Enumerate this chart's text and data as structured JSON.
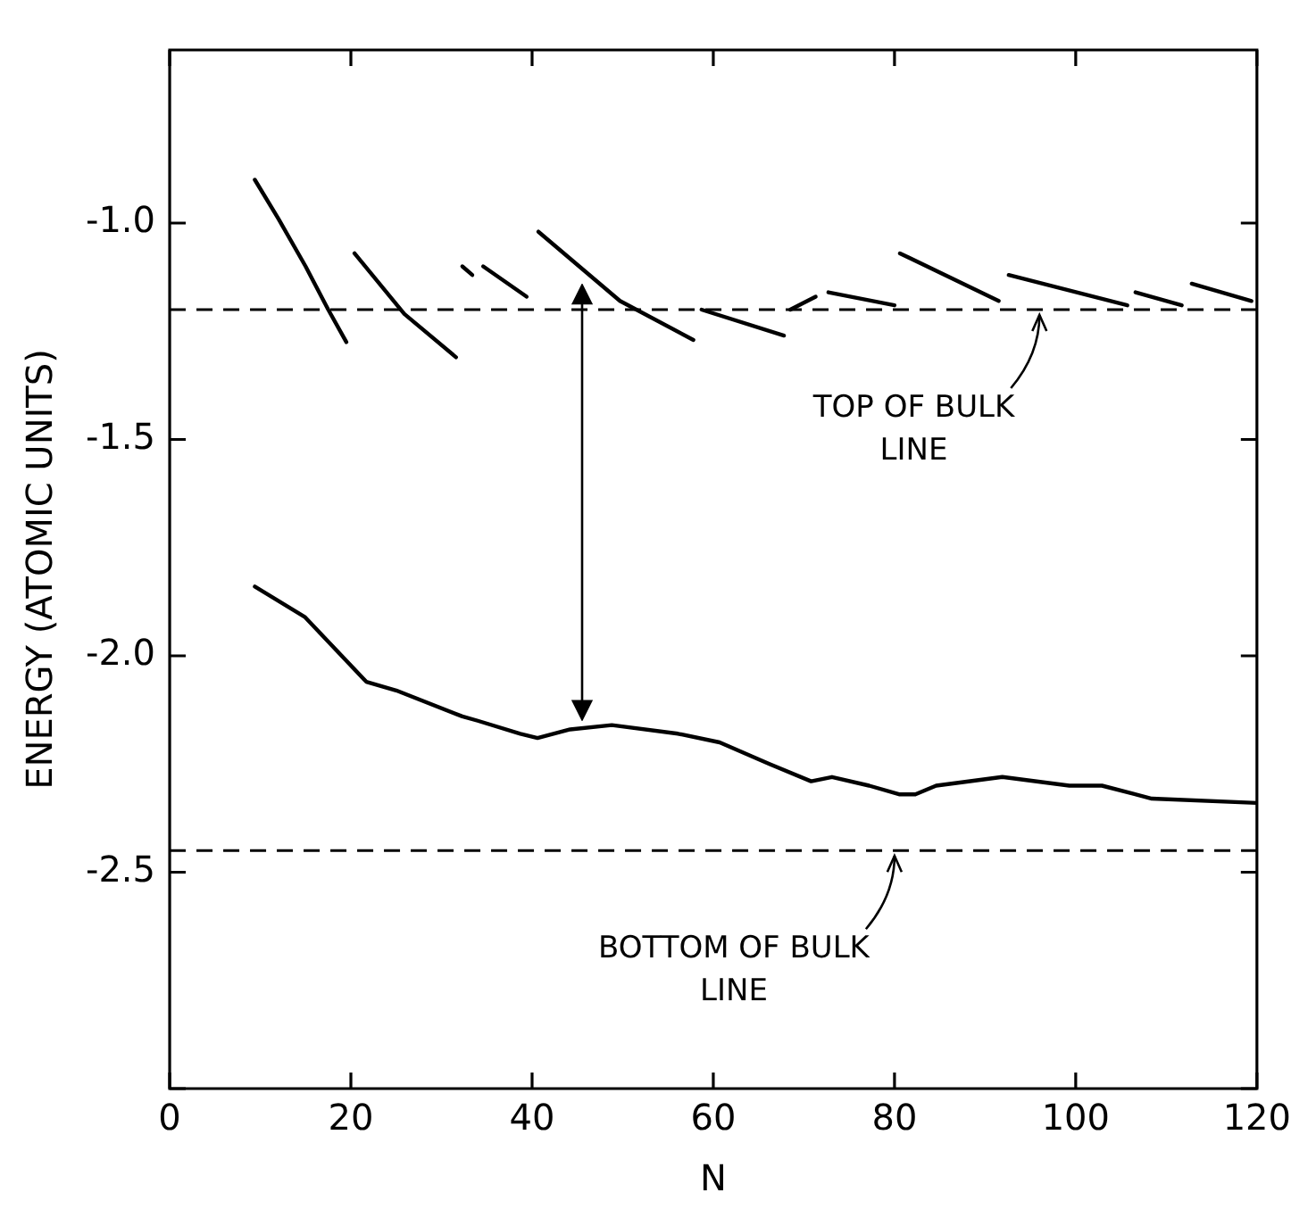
{
  "chart_data": {
    "type": "line",
    "xlabel": "N",
    "ylabel": "ENERGY (ATOMIC UNITS)",
    "xlim": [
      0,
      120
    ],
    "xticks": [
      0,
      20,
      40,
      60,
      80,
      100,
      120
    ],
    "ylim": [
      -3.0,
      -0.6
    ],
    "yticks": [
      {
        "value": -3.0,
        "label": null
      },
      -2.5,
      {
        "value": -2,
        "label": "-2.0"
      },
      -1.5,
      {
        "value": -1,
        "label": "-1.0"
      }
    ],
    "grid": false,
    "legend": false,
    "marker": "none",
    "line_style": "solid",
    "series": [
      {
        "color": "#000000",
        "x": [
          9.4,
          12,
          15,
          17.5,
          19.5
        ],
        "values": [
          -0.9,
          -0.99,
          -1.1,
          -1.2,
          -1.275
        ]
      },
      {
        "color": "#000000",
        "x": [
          20.4,
          25.9,
          31.6
        ],
        "values": [
          -1.07,
          -1.21,
          -1.31
        ]
      },
      {
        "color": "#000000",
        "x": [
          32.3,
          33.4
        ],
        "values": [
          -1.1,
          -1.12
        ]
      },
      {
        "color": "#000000",
        "x": [
          34.6,
          39.4
        ],
        "values": [
          -1.1,
          -1.17
        ]
      },
      {
        "color": "#000000",
        "x": [
          40.7,
          49.7,
          57.8
        ],
        "values": [
          -1.02,
          -1.18,
          -1.27
        ]
      },
      {
        "color": "#000000",
        "x": [
          58.7,
          67.8
        ],
        "values": [
          -1.2,
          -1.26
        ]
      },
      {
        "color": "#000000",
        "x": [
          68.5,
          71.3
        ],
        "values": [
          -1.2,
          -1.17
        ]
      },
      {
        "color": "#000000",
        "x": [
          72.7,
          80
        ],
        "values": [
          -1.16,
          -1.19
        ]
      },
      {
        "color": "#000000",
        "x": [
          80.6,
          91.5
        ],
        "values": [
          -1.07,
          -1.18
        ]
      },
      {
        "color": "#000000",
        "x": [
          92.6,
          105.7
        ],
        "values": [
          -1.12,
          -1.19
        ]
      },
      {
        "color": "#000000",
        "x": [
          106.6,
          111.7
        ],
        "values": [
          -1.16,
          -1.19
        ]
      },
      {
        "color": "#000000",
        "x": [
          112.8,
          119.4
        ],
        "values": [
          -1.14,
          -1.18
        ]
      },
      {
        "color": "#000000",
        "x": [
          9.4,
          14.9,
          21.7,
          25,
          32.3,
          34,
          38.7,
          40.6,
          44.2,
          48.8,
          56.1,
          60.7,
          66.2,
          70.8,
          73.1,
          77.2,
          80.5,
          82.3,
          84.6,
          91.9,
          99.3,
          102.9,
          108.4,
          120
        ],
        "values": [
          -1.84,
          -1.91,
          -2.06,
          -2.08,
          -2.14,
          -2.15,
          -2.18,
          -2.19,
          -2.17,
          -2.16,
          -2.18,
          -2.2,
          -2.25,
          -2.29,
          -2.28,
          -2.3,
          -2.32,
          -2.32,
          -2.3,
          -2.28,
          -2.3,
          -2.3,
          -2.33,
          -2.34
        ]
      }
    ],
    "ref_lines": [
      {
        "axis": "y",
        "value": -1.2,
        "color": "#000000",
        "line_style": "dashed"
      },
      {
        "axis": "y",
        "value": -2.45,
        "color": "#000000",
        "line_style": "dashed"
      }
    ],
    "annotations": [
      {
        "text": "TOP OF BULK LINE",
        "x": 96,
        "y": -1.2
      },
      {
        "text": "BOTTOM OF BULK LINE",
        "x": 80,
        "y": -2.45
      }
    ]
  }
}
